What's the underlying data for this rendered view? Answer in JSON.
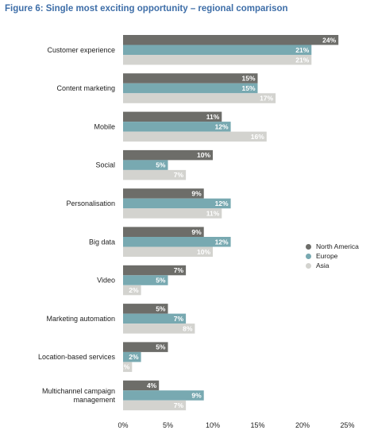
{
  "chart_data": {
    "type": "bar",
    "orientation": "horizontal",
    "title": "Figure 6: Single most exciting opportunity – regional comparison",
    "categories": [
      "Customer experience",
      "Content marketing",
      "Mobile",
      "Social",
      "Personalisation",
      "Big data",
      "Video",
      "Marketing automation",
      "Location-based services",
      "Multichannel campaign management"
    ],
    "category_lines": [
      [
        "Customer experience"
      ],
      [
        "Content marketing"
      ],
      [
        "Mobile"
      ],
      [
        "Social"
      ],
      [
        "Personalisation"
      ],
      [
        "Big data"
      ],
      [
        "Video"
      ],
      [
        "Marketing automation"
      ],
      [
        "Location-based services"
      ],
      [
        "Multichannel campaign",
        "management"
      ]
    ],
    "series": [
      {
        "name": "North America",
        "color": "#6d6d69",
        "label_color": "#ffffff",
        "values": [
          24,
          15,
          11,
          10,
          9,
          9,
          7,
          5,
          5,
          4
        ]
      },
      {
        "name": "Europe",
        "color": "#78a9b1",
        "label_color": "#ffffff",
        "values": [
          21,
          15,
          12,
          5,
          12,
          12,
          5,
          7,
          2,
          9
        ]
      },
      {
        "name": "Asia",
        "color": "#d3d3cf",
        "label_color": "#ffffff",
        "values": [
          21,
          17,
          16,
          7,
          11,
          10,
          2,
          8,
          1,
          7
        ]
      }
    ],
    "value_suffix": "%",
    "xlim": [
      0,
      25
    ],
    "xticks": [
      0,
      5,
      10,
      15,
      20,
      25
    ],
    "xtick_labels": [
      "0%",
      "5%",
      "10%",
      "15%",
      "20%",
      "25%"
    ],
    "grid": false,
    "legend_position": "right"
  }
}
